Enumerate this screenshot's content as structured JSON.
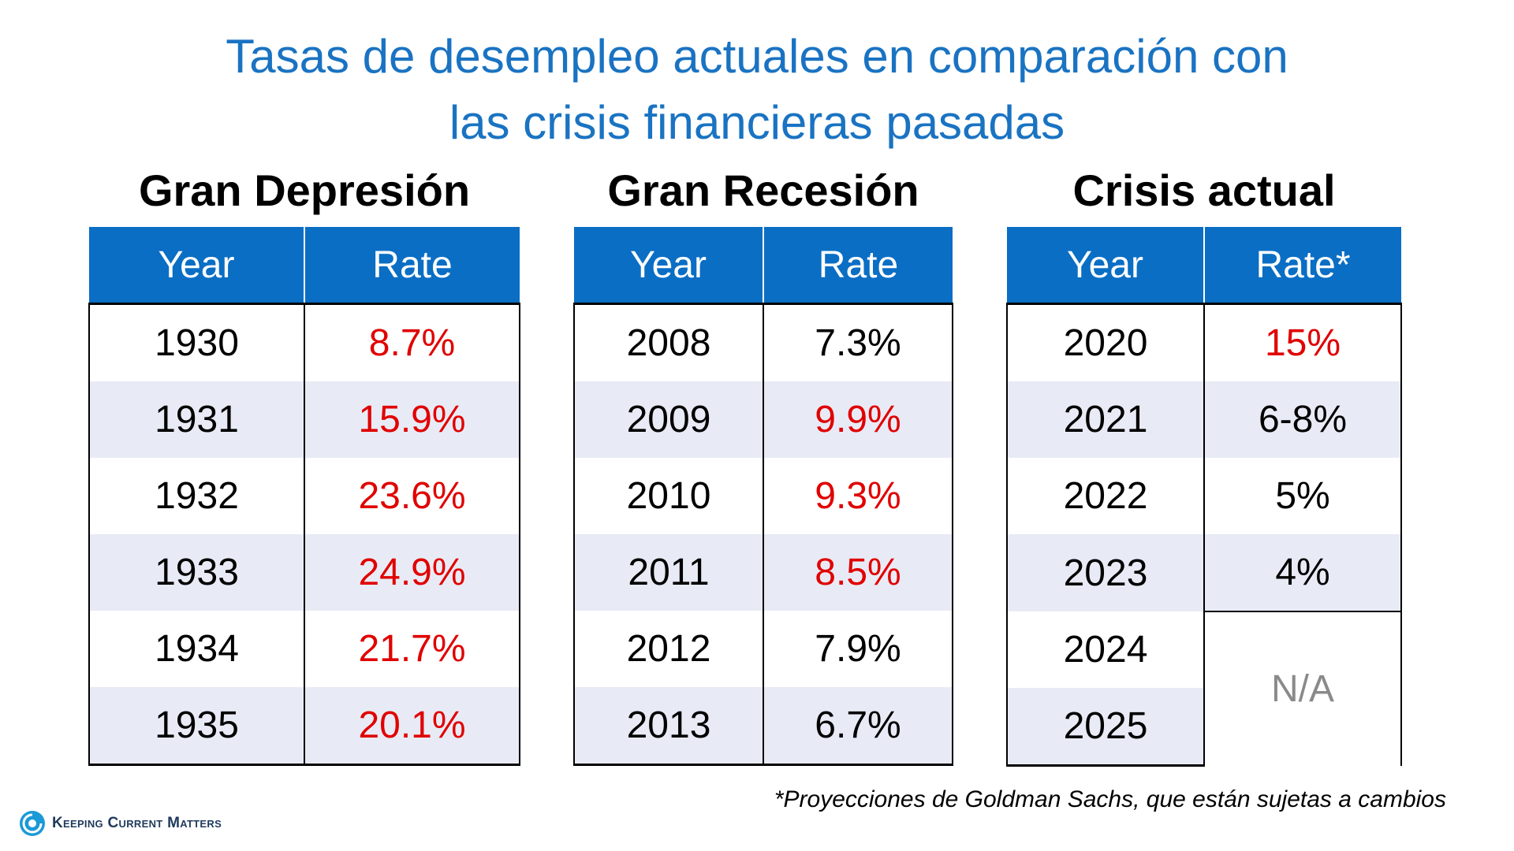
{
  "title": {
    "line1": "Tasas de desempleo actuales en comparación con",
    "line2": "las crisis financieras pasadas"
  },
  "tables": [
    {
      "heading": "Gran Depresión",
      "col_year": "Year",
      "col_rate": "Rate",
      "rows": [
        {
          "year": "1930",
          "rate": "8.7%"
        },
        {
          "year": "1931",
          "rate": "15.9%"
        },
        {
          "year": "1932",
          "rate": "23.6%"
        },
        {
          "year": "1933",
          "rate": "24.9%"
        },
        {
          "year": "1934",
          "rate": "21.7%"
        },
        {
          "year": "1935",
          "rate": "20.1%"
        }
      ]
    },
    {
      "heading": "Gran Recesión",
      "col_year": "Year",
      "col_rate": "Rate",
      "rows": [
        {
          "year": "2008",
          "rate": "7.3%"
        },
        {
          "year": "2009",
          "rate": "9.9%"
        },
        {
          "year": "2010",
          "rate": "9.3%"
        },
        {
          "year": "2011",
          "rate": "8.5%"
        },
        {
          "year": "2012",
          "rate": "7.9%"
        },
        {
          "year": "2013",
          "rate": "6.7%"
        }
      ]
    },
    {
      "heading": "Crisis actual",
      "col_year": "Year",
      "col_rate": "Rate*",
      "rows": [
        {
          "year": "2020",
          "rate": "15%"
        },
        {
          "year": "2021",
          "rate": "6-8%"
        },
        {
          "year": "2022",
          "rate": "5%"
        },
        {
          "year": "2023",
          "rate": "4%"
        },
        {
          "year": "2024",
          "rate": "N/A"
        },
        {
          "year": "2025",
          "rate": ""
        }
      ]
    }
  ],
  "footnote": "*Proyecciones de Goldman Sachs, que están sujetas a cambios",
  "logo": {
    "text": "Keeping Current Matters",
    "icon": "kcm-swirl-icon"
  },
  "colors": {
    "title": "#1a73c2",
    "header_bg": "#0a6ec4",
    "highlight": "#e00000",
    "stripe": "#e8ebf5",
    "na": "#8a8a8a"
  }
}
